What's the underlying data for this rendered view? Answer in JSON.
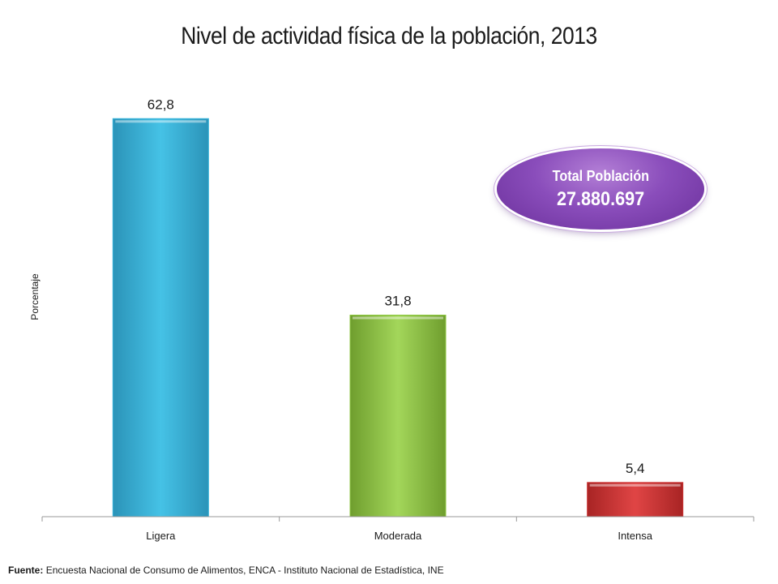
{
  "chart_data": {
    "type": "bar",
    "title": "Nivel de actividad física de la población, 2013",
    "ylabel": "Porcentaje",
    "xlabel": "",
    "categories": [
      "Ligera",
      "Moderada",
      "Intensa"
    ],
    "values": [
      62.8,
      31.8,
      5.4
    ],
    "value_labels": [
      "62,8",
      "31,8",
      "5,4"
    ],
    "ylim": [
      0,
      70
    ],
    "grid": false,
    "legend": "none",
    "colors": [
      "#35b3db",
      "#8cc63f",
      "#cc3333"
    ]
  },
  "badge": {
    "label": "Total Población",
    "value": "27.880.697",
    "color": "#8a4dbb"
  },
  "footer": {
    "source_label": "Fuente:",
    "source_text": "Encuesta Nacional de Consumo de Alimentos, ENCA - Instituto Nacional de Estadística, INE"
  }
}
